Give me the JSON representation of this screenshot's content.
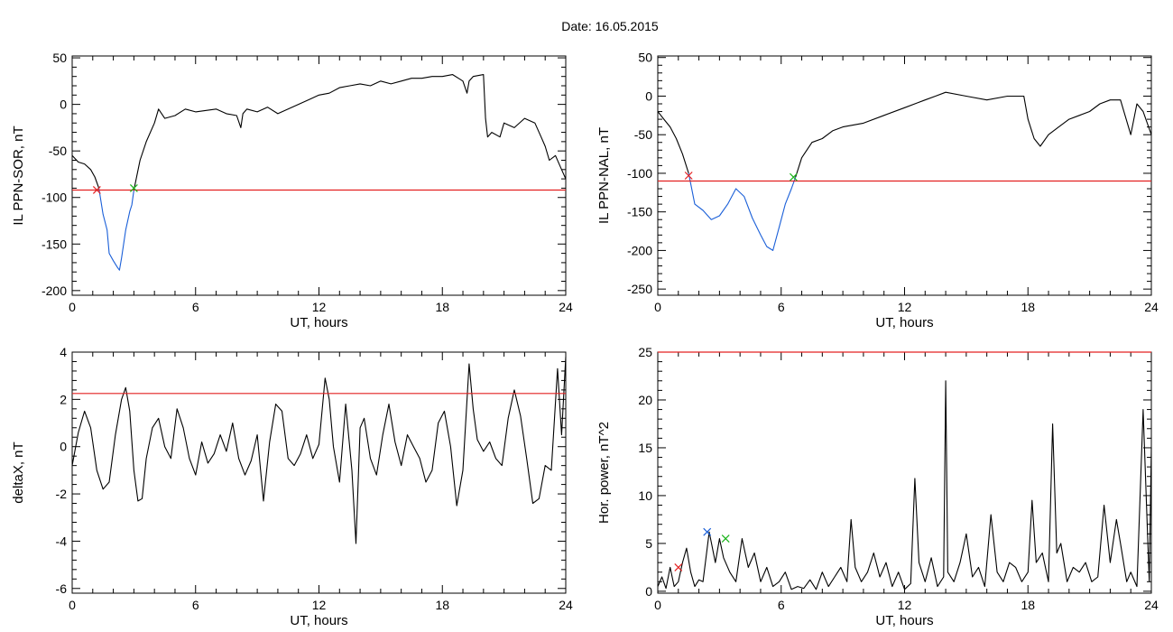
{
  "figure_title": "Date:  16.05.2015",
  "chart_data": [
    {
      "type": "line",
      "xlabel": "UT, hours",
      "ylabel": "IL PPN-SOR, nT",
      "xlim": [
        0,
        24
      ],
      "ylim": [
        -205,
        52
      ],
      "x_ticks": [
        0,
        6,
        12,
        18,
        24
      ],
      "y_ticks": [
        50,
        0,
        -50,
        -100,
        -150,
        -200
      ],
      "threshold": -92,
      "series": [
        {
          "color": "#000000",
          "x": [
            0,
            0.3,
            0.6,
            0.9,
            1.1,
            1.3
          ],
          "y": [
            -55,
            -62,
            -64,
            -70,
            -78,
            -90
          ]
        },
        {
          "color": "#1a5fd8",
          "x": [
            1.3,
            1.5,
            1.7,
            1.8,
            2.0,
            2.2,
            2.3,
            2.4,
            2.6,
            2.8,
            2.9,
            3.0
          ],
          "y": [
            -90,
            -118,
            -135,
            -160,
            -168,
            -175,
            -178,
            -165,
            -135,
            -115,
            -108,
            -92
          ]
        },
        {
          "color": "#000000",
          "x": [
            3.0,
            3.3,
            3.6,
            4.0,
            4.2,
            4.5,
            5.0,
            5.5,
            6.0,
            7.0,
            7.5,
            8.0,
            8.2,
            8.3,
            8.5,
            9.0,
            9.5,
            10.0,
            10.5,
            11.0,
            11.5,
            12.0,
            12.5,
            13.0,
            13.5,
            14.0,
            14.5,
            15.0,
            15.5,
            16.0,
            16.5,
            17.0,
            17.5,
            18.0,
            18.5,
            19.0,
            19.2,
            19.3,
            19.5,
            20.0,
            20.1,
            20.2,
            20.4,
            20.8,
            21.0,
            21.5,
            22.0,
            22.5,
            22.8,
            23.0,
            23.2,
            23.5,
            23.8,
            24.0
          ],
          "y": [
            -92,
            -60,
            -40,
            -20,
            -5,
            -15,
            -12,
            -5,
            -8,
            -5,
            -10,
            -12,
            -25,
            -10,
            -5,
            -8,
            -3,
            -10,
            -5,
            0,
            5,
            10,
            12,
            18,
            20,
            22,
            20,
            25,
            22,
            25,
            28,
            28,
            30,
            30,
            32,
            25,
            12,
            25,
            30,
            32,
            -15,
            -35,
            -30,
            -35,
            -20,
            -25,
            -15,
            -20,
            -35,
            -45,
            -60,
            -55,
            -70,
            -80
          ]
        }
      ],
      "markers": [
        {
          "x": 1.2,
          "y": -92,
          "color": "#e32020"
        },
        {
          "x": 3.0,
          "y": -90,
          "color": "#19b319"
        }
      ]
    },
    {
      "type": "line",
      "xlabel": "UT, hours",
      "ylabel": "IL PPN-NAL, nT",
      "xlim": [
        0,
        24
      ],
      "ylim": [
        -258,
        52
      ],
      "x_ticks": [
        0,
        6,
        12,
        18,
        24
      ],
      "y_ticks": [
        50,
        0,
        -50,
        -100,
        -150,
        -200,
        -250
      ],
      "threshold": -110,
      "series": [
        {
          "color": "#000000",
          "x": [
            0,
            0.3,
            0.6,
            0.9,
            1.2,
            1.5
          ],
          "y": [
            -20,
            -30,
            -40,
            -55,
            -75,
            -100
          ]
        },
        {
          "color": "#1a5fd8",
          "x": [
            1.5,
            1.8,
            2.2,
            2.6,
            3.0,
            3.4,
            3.8,
            4.2,
            4.6,
            5.0,
            5.3,
            5.6,
            5.9,
            6.2,
            6.5,
            6.7
          ],
          "y": [
            -100,
            -140,
            -148,
            -160,
            -155,
            -140,
            -120,
            -130,
            -158,
            -180,
            -195,
            -200,
            -170,
            -140,
            -120,
            -105
          ]
        },
        {
          "color": "#000000",
          "x": [
            6.7,
            7.0,
            7.5,
            8.0,
            8.5,
            9.0,
            10.0,
            11.0,
            12.0,
            13.0,
            13.5,
            14.0,
            15.0,
            16.0,
            17.0,
            17.5,
            17.8,
            18.0,
            18.3,
            18.6,
            19.0,
            19.5,
            20.0,
            20.5,
            21.0,
            21.5,
            22.0,
            22.5,
            23.0,
            23.3,
            23.6,
            24.0
          ],
          "y": [
            -105,
            -80,
            -60,
            -55,
            -45,
            -40,
            -35,
            -25,
            -15,
            -5,
            0,
            5,
            0,
            -5,
            0,
            0,
            0,
            -30,
            -55,
            -65,
            -50,
            -40,
            -30,
            -25,
            -20,
            -10,
            -5,
            -5,
            -50,
            -10,
            -20,
            -50
          ]
        }
      ],
      "markers": [
        {
          "x": 1.5,
          "y": -103,
          "color": "#e32020"
        },
        {
          "x": 6.6,
          "y": -105,
          "color": "#19b319"
        }
      ]
    },
    {
      "type": "line",
      "xlabel": "UT, hours",
      "ylabel": "deltaX, nT",
      "xlim": [
        0,
        24
      ],
      "ylim": [
        -6.2,
        4.0
      ],
      "x_ticks": [
        0,
        6,
        12,
        18,
        24
      ],
      "y_ticks": [
        4,
        2,
        0,
        -2,
        -4,
        -6
      ],
      "threshold": 2.25,
      "series": [
        {
          "color": "#000000",
          "x": [
            0,
            0.3,
            0.6,
            0.9,
            1.2,
            1.5,
            1.8,
            2.1,
            2.4,
            2.6,
            2.8,
            3.0,
            3.2,
            3.4,
            3.6,
            3.9,
            4.2,
            4.5,
            4.8,
            5.1,
            5.4,
            5.7,
            6.0,
            6.3,
            6.6,
            6.9,
            7.2,
            7.5,
            7.8,
            8.1,
            8.4,
            8.7,
            9.0,
            9.3,
            9.6,
            9.9,
            10.2,
            10.5,
            10.8,
            11.1,
            11.4,
            11.7,
            12.0,
            12.3,
            12.5,
            12.7,
            13.0,
            13.3,
            13.6,
            13.8,
            14.0,
            14.2,
            14.5,
            14.8,
            15.1,
            15.4,
            15.7,
            16.0,
            16.3,
            16.6,
            16.9,
            17.2,
            17.5,
            17.8,
            18.1,
            18.4,
            18.7,
            19.0,
            19.3,
            19.5,
            19.7,
            20.0,
            20.3,
            20.6,
            20.9,
            21.2,
            21.5,
            21.8,
            22.1,
            22.4,
            22.7,
            23.0,
            23.3,
            23.6,
            23.8,
            24.0
          ],
          "y": [
            -0.8,
            0.6,
            1.5,
            0.8,
            -1.0,
            -1.8,
            -1.5,
            0.5,
            2.0,
            2.5,
            1.5,
            -1.0,
            -2.3,
            -2.2,
            -0.5,
            0.8,
            1.2,
            0,
            -0.5,
            1.6,
            0.8,
            -0.5,
            -1.2,
            0.2,
            -0.7,
            -0.3,
            0.5,
            -0.2,
            1.0,
            -0.5,
            -1.2,
            -0.6,
            0.5,
            -2.3,
            0.2,
            1.8,
            1.5,
            -0.5,
            -0.8,
            -0.3,
            0.5,
            -0.5,
            0.1,
            2.9,
            2.0,
            0,
            -1.5,
            1.8,
            -1.0,
            -4.1,
            0.8,
            1.2,
            -0.5,
            -1.2,
            0.5,
            1.8,
            0.2,
            -0.8,
            0.5,
            0,
            -0.5,
            -1.5,
            -1.0,
            1.0,
            1.5,
            0,
            -2.5,
            -1.0,
            3.5,
            1.6,
            0.3,
            -0.2,
            0.2,
            -0.5,
            -0.8,
            1.2,
            2.4,
            1.3,
            -0.5,
            -2.4,
            -2.2,
            -0.8,
            -1.0,
            3.3,
            0.5,
            3.8
          ]
        }
      ]
    },
    {
      "type": "line",
      "xlabel": "UT, hours",
      "ylabel": "Hor. power, nT^2",
      "xlim": [
        0,
        24
      ],
      "ylim": [
        -0.2,
        25
      ],
      "x_ticks": [
        0,
        6,
        12,
        18,
        24
      ],
      "y_ticks": [
        25,
        20,
        15,
        10,
        5,
        0
      ],
      "threshold": 25,
      "series": [
        {
          "color": "#000000",
          "x": [
            0,
            0.2,
            0.4,
            0.6,
            0.8,
            1.0,
            1.2,
            1.4,
            1.6,
            1.8,
            2.0,
            2.2,
            2.5,
            2.8,
            3.0,
            3.2,
            3.5,
            3.8,
            4.1,
            4.4,
            4.7,
            5.0,
            5.3,
            5.6,
            5.9,
            6.2,
            6.5,
            6.8,
            7.1,
            7.4,
            7.7,
            8.0,
            8.3,
            8.6,
            8.9,
            9.2,
            9.4,
            9.6,
            9.9,
            10.2,
            10.5,
            10.8,
            11.1,
            11.4,
            11.7,
            12.0,
            12.3,
            12.5,
            12.7,
            13.0,
            13.3,
            13.6,
            13.9,
            14.0,
            14.1,
            14.4,
            14.7,
            15.0,
            15.3,
            15.6,
            15.9,
            16.2,
            16.5,
            16.8,
            17.1,
            17.4,
            17.7,
            18.0,
            18.2,
            18.4,
            18.7,
            19.0,
            19.2,
            19.4,
            19.6,
            19.9,
            20.2,
            20.5,
            20.8,
            21.1,
            21.4,
            21.7,
            22.0,
            22.3,
            22.5,
            22.8,
            23.0,
            23.3,
            23.6,
            23.8,
            23.9,
            24.0
          ],
          "y": [
            0.5,
            1.5,
            0.3,
            2.5,
            0.5,
            1.0,
            3.0,
            4.5,
            2.0,
            0.5,
            1.2,
            1.0,
            6.2,
            3.0,
            5.5,
            3.5,
            2.0,
            1.0,
            5.5,
            2.5,
            4.0,
            1.0,
            2.5,
            0.5,
            1.0,
            2.0,
            0.2,
            0.5,
            0.3,
            1.2,
            0.2,
            2.0,
            0.5,
            1.5,
            2.5,
            1.0,
            7.5,
            2.5,
            1.0,
            2.0,
            4.0,
            1.5,
            3.0,
            0.5,
            2.0,
            0.2,
            0.8,
            11.8,
            3.0,
            1.0,
            3.5,
            0.5,
            1.5,
            22.0,
            2.0,
            1.0,
            3.0,
            6.0,
            1.5,
            2.5,
            0.5,
            8.0,
            2.0,
            1.0,
            3.0,
            2.5,
            1.0,
            2.0,
            9.5,
            3.0,
            4.0,
            1.0,
            17.5,
            4.0,
            5.0,
            1.0,
            2.5,
            2.0,
            3.0,
            1.0,
            1.5,
            9.0,
            3.0,
            7.5,
            5.0,
            1.0,
            2.0,
            0.5,
            19.0,
            7.0,
            1.0,
            15.0
          ]
        }
      ],
      "markers": [
        {
          "x": 1.0,
          "y": 2.5,
          "color": "#e32020"
        },
        {
          "x": 2.4,
          "y": 6.2,
          "color": "#1a5fd8"
        },
        {
          "x": 3.3,
          "y": 5.5,
          "color": "#19b319"
        }
      ]
    }
  ]
}
